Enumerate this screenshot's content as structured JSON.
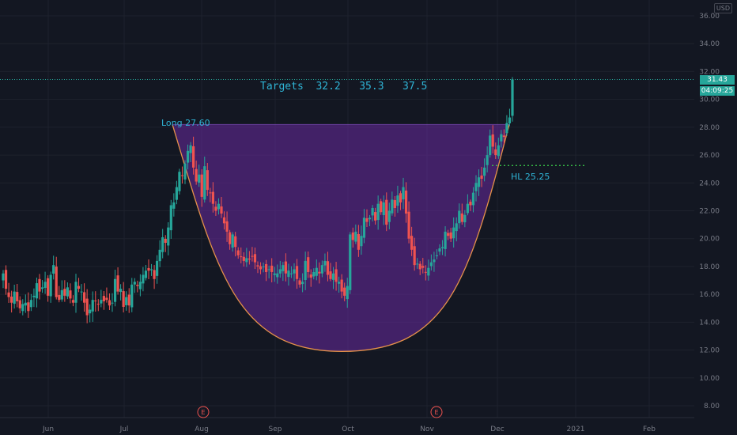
{
  "chart_data": {
    "type": "candlestick",
    "currency": "USD",
    "colors": {
      "up": "#26a69a",
      "down": "#ef5350",
      "cup_fill": "#6a2aa1",
      "cup_curve": "#e6914a",
      "annotation": "#2fb4d6",
      "higher_low": "#3bd14b",
      "background": "#131722"
    },
    "yaxis": {
      "ticks": [
        "8.00",
        "10.00",
        "12.00",
        "14.00",
        "16.00",
        "18.00",
        "20.00",
        "22.00",
        "24.00",
        "26.00",
        "28.00",
        "30.00",
        "32.00",
        "34.00",
        "36.00"
      ],
      "ylim": [
        7,
        37
      ]
    },
    "xaxis": {
      "labels": [
        "Jun",
        "Jul",
        "Aug",
        "Sep",
        "Oct",
        "Nov",
        "Dec",
        "2021",
        "Feb"
      ]
    },
    "last_price": 31.43,
    "last_price_label": "31.43",
    "countdown": "04:09:25",
    "annotations": {
      "targets": "Targets  32.2   35.3   37.5",
      "long": "Long 27.60",
      "hl": "HL 25.25"
    },
    "levels": {
      "long_entry": 27.6,
      "higher_low": 25.25
    },
    "cup": {
      "left_rim_price": 28.2,
      "bottom_price": 11.9,
      "right_rim_price": 28.2,
      "start": "Jul 20",
      "bottom_date": "Sep 29",
      "end": "Dec 3"
    },
    "earnings_markers": [
      {
        "label": "E",
        "date": "Aug"
      },
      {
        "label": "E",
        "date": "Nov"
      }
    ],
    "closes": [
      17.5,
      16.4,
      15.8,
      15.4,
      16.2,
      15.5,
      15.0,
      15.3,
      15.4,
      14.8,
      15.6,
      15.9,
      16.8,
      16.2,
      16.5,
      16.9,
      15.9,
      17.4,
      18.1,
      15.8,
      15.6,
      16.3,
      15.9,
      16.5,
      15.7,
      15.4,
      16.9,
      16.4,
      16.2,
      15.4,
      14.5,
      14.9,
      15.6,
      15.5,
      15.3,
      15.6,
      15.5,
      15.6,
      15.2,
      15.4,
      17.1,
      16.2,
      16.4,
      15.1,
      15.8,
      15.2,
      16.7,
      16.9,
      16.6,
      16.9,
      17.4,
      17.7,
      17.7,
      17.8,
      17.1,
      18.4,
      19.2,
      20.1,
      19.7,
      20.8,
      22.4,
      22.6,
      23.7,
      24.8,
      24.5,
      25.4,
      26.3,
      26.7,
      25.1,
      24.1,
      24.6,
      23.0,
      25.2,
      23.5,
      23.3,
      22.5,
      22.0,
      22.5,
      21.8,
      21.1,
      20.5,
      19.6,
      20.3,
      19.4,
      18.8,
      18.7,
      18.4,
      18.6,
      18.5,
      18.7,
      18.3,
      18.0,
      17.8,
      18.0,
      17.6,
      17.8,
      17.6,
      17.5,
      17.5,
      17.8,
      18.1,
      17.5,
      17.7,
      17.5,
      17.8,
      17.1,
      16.7,
      16.9,
      18.4,
      17.6,
      17.2,
      17.6,
      17.9,
      17.5,
      18.1,
      18.4,
      17.4,
      17.1,
      17.5,
      16.9,
      16.9,
      16.2,
      15.9,
      16.6,
      20.3,
      19.9,
      20.5,
      19.2,
      20.2,
      21.5,
      21.2,
      21.5,
      22.2,
      21.3,
      22.5,
      21.9,
      22.6,
      21.0,
      22.0,
      22.8,
      22.2,
      23.1,
      22.6,
      23.7,
      21.8,
      20.0,
      19.2,
      18.1,
      18.2,
      17.8,
      17.9,
      17.6,
      17.9,
      18.3,
      18.5,
      18.8,
      19.3,
      19.4,
      20.5,
      20.2,
      20.0,
      20.8,
      21.1,
      22.0,
      21.2,
      21.7,
      22.5,
      22.4,
      23.3,
      24.0,
      24.4,
      24.3,
      25.1,
      26.0,
      27.4,
      26.6,
      26.0,
      26.7,
      27.5,
      27.3,
      28.3,
      28.7,
      31.43
    ]
  }
}
